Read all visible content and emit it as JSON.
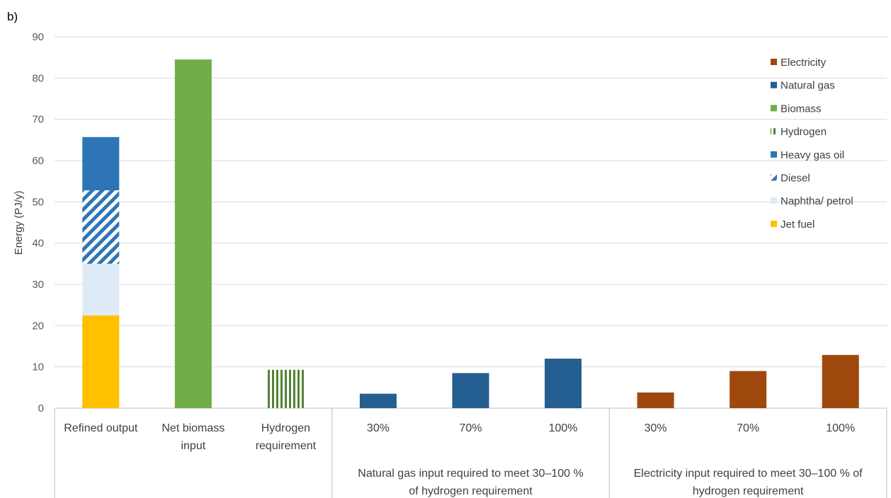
{
  "panel_label": "b)",
  "chart_data": {
    "type": "bar",
    "title": "",
    "ylabel": "Energy (PJ/y)",
    "xlabel": "",
    "ylim": [
      0,
      90
    ],
    "yticks": [
      0,
      10,
      20,
      30,
      40,
      50,
      60,
      70,
      80,
      90
    ],
    "grid": true,
    "legend_position": "top-right",
    "legend": [
      {
        "name": "Electricity",
        "color": "#9E480E",
        "pattern": "solid"
      },
      {
        "name": "Natural gas",
        "color": "#255E91",
        "pattern": "solid"
      },
      {
        "name": "Biomass",
        "color": "#70AD47",
        "pattern": "solid"
      },
      {
        "name": "Hydrogen",
        "color": "#548235",
        "pattern": "vertical-stripes"
      },
      {
        "name": "Heavy gas oil",
        "color": "#2E75B6",
        "pattern": "solid"
      },
      {
        "name": "Diesel",
        "color": "#2E75B6",
        "pattern": "diagonal-stripes"
      },
      {
        "name": "Naphtha/ petrol",
        "color": "#DEEBF7",
        "pattern": "solid"
      },
      {
        "name": "Jet fuel",
        "color": "#FFC000",
        "pattern": "solid"
      }
    ],
    "categories": [
      {
        "label": [
          "Refined output"
        ],
        "stack": [
          {
            "series": "Jet fuel",
            "value": 22.5
          },
          {
            "series": "Naphtha/ petrol",
            "value": 12.5
          },
          {
            "series": "Diesel",
            "value": 17.8
          },
          {
            "series": "Heavy gas oil",
            "value": 12.9
          }
        ]
      },
      {
        "label": [
          "Net biomass",
          "input"
        ],
        "stack": [
          {
            "series": "Biomass",
            "value": 84.5
          }
        ]
      },
      {
        "label": [
          "Hydrogen",
          "requirement"
        ],
        "stack": [
          {
            "series": "Hydrogen",
            "value": 9.3
          }
        ]
      },
      {
        "label": [
          "30%"
        ],
        "stack": [
          {
            "series": "Natural gas",
            "value": 3.5
          }
        ]
      },
      {
        "label": [
          "70%"
        ],
        "stack": [
          {
            "series": "Natural gas",
            "value": 8.5
          }
        ]
      },
      {
        "label": [
          "100%"
        ],
        "stack": [
          {
            "series": "Natural gas",
            "value": 12.0
          }
        ]
      },
      {
        "label": [
          "30%"
        ],
        "stack": [
          {
            "series": "Electricity",
            "value": 3.8
          }
        ]
      },
      {
        "label": [
          "70%"
        ],
        "stack": [
          {
            "series": "Electricity",
            "value": 9.0
          }
        ]
      },
      {
        "label": [
          "100%"
        ],
        "stack": [
          {
            "series": "Electricity",
            "value": 12.9
          }
        ]
      }
    ],
    "groups": [
      {
        "label": [
          "Natural gas input required to meet 30–100 %",
          "of hydrogen requirement"
        ],
        "from": 3,
        "to": 5
      },
      {
        "label": [
          "Electricity input required to meet 30–100 % of",
          "hydrogen requirement"
        ],
        "from": 6,
        "to": 8
      }
    ]
  }
}
